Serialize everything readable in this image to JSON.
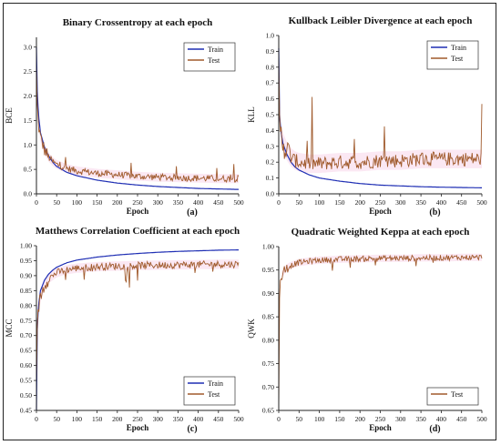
{
  "colors": {
    "train": "#1f2fb4",
    "test": "#a05a2c",
    "band": "#f7d6ea",
    "axis": "#222222"
  },
  "chart_data": [
    {
      "id": "a",
      "type": "line",
      "title": "Binary Crossentropy at each epoch",
      "xlabel": "Epoch",
      "ylabel": "BCE",
      "panel_label": "(a)",
      "xlim": [
        0,
        500
      ],
      "ylim": [
        0,
        3.2
      ],
      "xticks": [
        0,
        50,
        100,
        150,
        200,
        250,
        300,
        350,
        400,
        450,
        500
      ],
      "yticks": [
        0.0,
        0.5,
        1.0,
        1.5,
        2.0,
        2.5,
        3.0
      ],
      "ytick_labels": [
        "0.0",
        "0.5",
        "1.0",
        "1.5",
        "2.0",
        "2.5",
        "3.0"
      ],
      "legend_position": "top-right",
      "series": [
        {
          "name": "Train",
          "color": "#1f2fb4",
          "x": [
            0,
            2,
            5,
            10,
            20,
            30,
            40,
            50,
            75,
            100,
            150,
            200,
            250,
            300,
            350,
            400,
            450,
            500
          ],
          "y": [
            3.0,
            2.1,
            1.6,
            1.25,
            0.95,
            0.78,
            0.65,
            0.56,
            0.44,
            0.37,
            0.28,
            0.22,
            0.18,
            0.15,
            0.13,
            0.11,
            0.1,
            0.09
          ]
        },
        {
          "name": "Test",
          "color": "#a05a2c",
          "x": [
            0,
            2,
            5,
            10,
            20,
            30,
            40,
            50,
            75,
            100,
            150,
            200,
            250,
            300,
            350,
            400,
            450,
            500
          ],
          "y": [
            2.6,
            1.8,
            1.4,
            1.15,
            0.9,
            0.75,
            0.66,
            0.6,
            0.52,
            0.47,
            0.42,
            0.39,
            0.36,
            0.34,
            0.33,
            0.32,
            0.31,
            0.31
          ]
        }
      ]
    },
    {
      "id": "b",
      "type": "line",
      "title": "Kullback Leibler Divergence at each epoch",
      "xlabel": "Epoch",
      "ylabel": "KLL",
      "panel_label": "(b)",
      "xlim": [
        0,
        500
      ],
      "ylim": [
        0,
        1.0
      ],
      "xticks": [
        0,
        50,
        100,
        150,
        200,
        250,
        300,
        350,
        400,
        450,
        500
      ],
      "yticks": [
        0.0,
        0.1,
        0.2,
        0.3,
        0.4,
        0.5,
        0.6,
        0.7,
        0.8,
        0.9,
        1.0
      ],
      "ytick_labels": [
        "0.0",
        "0.1",
        "0.2",
        "0.3",
        "0.4",
        "0.5",
        "0.6",
        "0.7",
        "0.8",
        "0.9",
        "1.0"
      ],
      "legend_position": "top-right",
      "series": [
        {
          "name": "Train",
          "color": "#1f2fb4",
          "x": [
            0,
            2,
            5,
            10,
            20,
            30,
            40,
            50,
            75,
            100,
            150,
            200,
            250,
            300,
            350,
            400,
            450,
            500
          ],
          "y": [
            0.92,
            0.5,
            0.4,
            0.32,
            0.25,
            0.2,
            0.17,
            0.15,
            0.12,
            0.1,
            0.08,
            0.065,
            0.055,
            0.05,
            0.045,
            0.042,
            0.04,
            0.038
          ]
        },
        {
          "name": "Test",
          "color": "#a05a2c",
          "x": [
            0,
            2,
            5,
            10,
            20,
            30,
            40,
            50,
            75,
            100,
            150,
            200,
            250,
            300,
            350,
            400,
            450,
            500
          ],
          "y": [
            0.8,
            0.45,
            0.38,
            0.33,
            0.27,
            0.23,
            0.21,
            0.2,
            0.19,
            0.19,
            0.2,
            0.2,
            0.21,
            0.21,
            0.22,
            0.22,
            0.22,
            0.22
          ]
        }
      ]
    },
    {
      "id": "c",
      "type": "line",
      "title": "Matthews Correlation Coefficient at each epoch",
      "xlabel": "Epoch",
      "ylabel": "MCC",
      "panel_label": "(c)",
      "xlim": [
        0,
        500
      ],
      "ylim": [
        0.45,
        1.0
      ],
      "xticks": [
        0,
        50,
        100,
        150,
        200,
        250,
        300,
        350,
        400,
        450,
        500
      ],
      "yticks": [
        0.45,
        0.5,
        0.55,
        0.6,
        0.65,
        0.7,
        0.75,
        0.8,
        0.85,
        0.9,
        0.95,
        1.0
      ],
      "ytick_labels": [
        "0.45",
        "0.50",
        "0.55",
        "0.60",
        "0.65",
        "0.70",
        "0.75",
        "0.80",
        "0.85",
        "0.90",
        "0.95",
        "1.00"
      ],
      "legend_position": "bottom-right",
      "series": [
        {
          "name": "Train",
          "color": "#1f2fb4",
          "x": [
            0,
            2,
            5,
            10,
            20,
            30,
            40,
            50,
            75,
            100,
            150,
            200,
            250,
            300,
            350,
            400,
            450,
            500
          ],
          "y": [
            0.45,
            0.72,
            0.8,
            0.85,
            0.885,
            0.905,
            0.918,
            0.928,
            0.943,
            0.952,
            0.962,
            0.969,
            0.974,
            0.978,
            0.981,
            0.983,
            0.985,
            0.986
          ]
        },
        {
          "name": "Test",
          "color": "#a05a2c",
          "x": [
            0,
            2,
            5,
            10,
            20,
            30,
            40,
            50,
            75,
            100,
            150,
            200,
            250,
            300,
            350,
            400,
            450,
            500
          ],
          "y": [
            0.6,
            0.72,
            0.79,
            0.83,
            0.87,
            0.89,
            0.9,
            0.91,
            0.92,
            0.925,
            0.93,
            0.932,
            0.934,
            0.935,
            0.936,
            0.937,
            0.938,
            0.938
          ]
        }
      ]
    },
    {
      "id": "d",
      "type": "line",
      "title": "Quadratic Weighted Keppa at each epoch",
      "xlabel": "Epoch",
      "ylabel": "QWK",
      "panel_label": "(d)",
      "xlim": [
        0,
        500
      ],
      "ylim": [
        0.65,
        1.0
      ],
      "xticks": [
        0,
        50,
        100,
        150,
        200,
        250,
        300,
        350,
        400,
        450,
        500
      ],
      "yticks": [
        0.65,
        0.7,
        0.75,
        0.8,
        0.85,
        0.9,
        0.95,
        1.0
      ],
      "ytick_labels": [
        "0.65",
        "0.70",
        "0.75",
        "0.80",
        "0.85",
        "0.90",
        "0.95",
        "1.00"
      ],
      "legend_position": "bottom-right",
      "series": [
        {
          "name": "Test",
          "color": "#a05a2c",
          "x": [
            0,
            2,
            5,
            10,
            20,
            30,
            40,
            50,
            75,
            100,
            150,
            200,
            250,
            300,
            350,
            400,
            450,
            500
          ],
          "y": [
            0.66,
            0.9,
            0.93,
            0.945,
            0.955,
            0.96,
            0.963,
            0.966,
            0.969,
            0.971,
            0.973,
            0.974,
            0.975,
            0.975,
            0.976,
            0.976,
            0.977,
            0.977
          ]
        }
      ]
    }
  ]
}
